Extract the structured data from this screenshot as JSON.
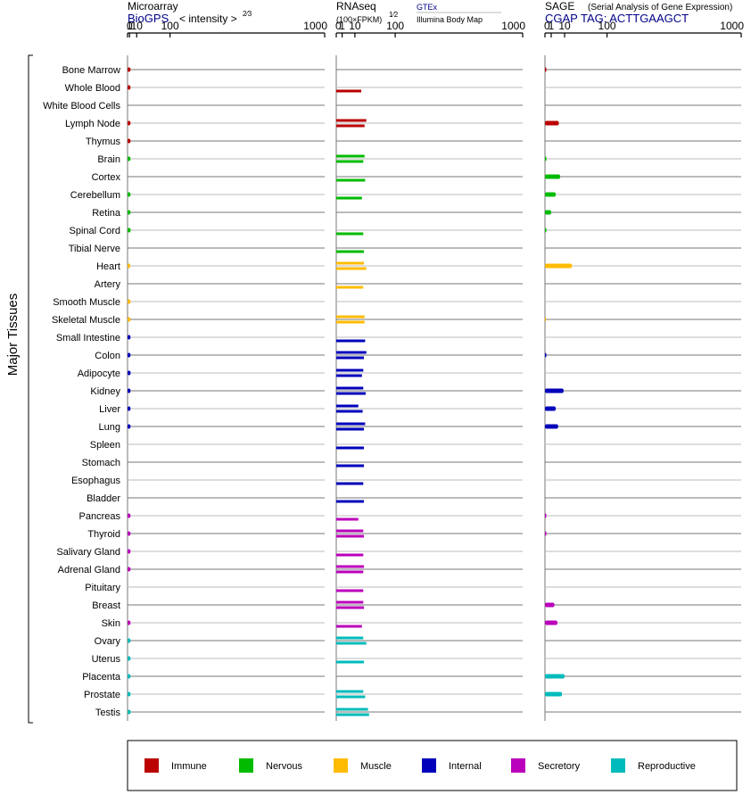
{
  "colors": {
    "Immune": "#bb0000",
    "Nervous": "#00bb00",
    "Muscle": "#ffbb00",
    "Internal": "#0000bb",
    "Secretory": "#bb00bb",
    "Reproductive": "#00bbbb",
    "link": "#000088",
    "grid": "#777777"
  },
  "y_axis_label": "Major Tissues",
  "panels": [
    {
      "title": "Microarray",
      "subtitle_link": "BioGPS",
      "subtitle_note": "< intensity >",
      "subtitle_exp": "2⁄3",
      "ticks": [
        "0",
        "1",
        "10",
        "100",
        "1000"
      ]
    },
    {
      "title": "RNAseq",
      "subtitle_note": "(100×FPKM)",
      "subtitle_exp": "1⁄2",
      "source_top": "GTEx",
      "source_bottom": "Illumina Body Map",
      "ticks": [
        "0",
        "1",
        "10",
        "100",
        "1000"
      ]
    },
    {
      "title": "SAGE",
      "title_note": "(Serial Analysis of Gene Expression)",
      "subtitle_link": "CGAP TAG: ACTTGAAGCT",
      "ticks": [
        "0",
        "1",
        "10",
        "100",
        "1000"
      ]
    }
  ],
  "legend": [
    "Immune",
    "Nervous",
    "Muscle",
    "Internal",
    "Secretory",
    "Reproductive"
  ],
  "chart_data": {
    "type": "bar",
    "scale": "power-transformed (Microarray ^2/3, RNAseq ^1/2, SAGE ^1/2)",
    "categories": [
      "Bone Marrow",
      "Whole Blood",
      "White Blood Cells",
      "Lymph Node",
      "Thymus",
      "Brain",
      "Cortex",
      "Cerebellum",
      "Retina",
      "Spinal Cord",
      "Tibial Nerve",
      "Heart",
      "Artery",
      "Smooth Muscle",
      "Skeletal Muscle",
      "Small Intestine",
      "Colon",
      "Adipocyte",
      "Kidney",
      "Liver",
      "Lung",
      "Spleen",
      "Stomach",
      "Esophagus",
      "Bladder",
      "Pancreas",
      "Thyroid",
      "Salivary Gland",
      "Adrenal Gland",
      "Pituitary",
      "Breast",
      "Skin",
      "Ovary",
      "Uterus",
      "Placenta",
      "Prostate",
      "Testis"
    ],
    "groups": [
      "Immune",
      "Immune",
      "Immune",
      "Immune",
      "Immune",
      "Nervous",
      "Nervous",
      "Nervous",
      "Nervous",
      "Nervous",
      "Nervous",
      "Muscle",
      "Muscle",
      "Muscle",
      "Muscle",
      "Internal",
      "Internal",
      "Internal",
      "Internal",
      "Internal",
      "Internal",
      "Internal",
      "Internal",
      "Internal",
      "Internal",
      "Secretory",
      "Secretory",
      "Secretory",
      "Secretory",
      "Secretory",
      "Secretory",
      "Secretory",
      "Reproductive",
      "Reproductive",
      "Reproductive",
      "Reproductive",
      "Reproductive"
    ],
    "series": [
      {
        "name": "Microarray",
        "values": [
          [
            1.8
          ],
          [
            1.8
          ],
          [],
          [
            1.8
          ],
          [
            1.8
          ],
          [
            1.8
          ],
          [],
          [
            1.8
          ],
          [
            1.8
          ],
          [
            1.9
          ],
          [],
          [
            1.5
          ],
          [],
          [
            1.8
          ],
          [
            1.8
          ],
          [
            1.8
          ],
          [
            1.8
          ],
          [
            1.9
          ],
          [
            1.8
          ],
          [
            1.8
          ],
          [
            1.8
          ],
          [],
          [],
          [],
          [],
          [
            1.8
          ],
          [
            1.8
          ],
          [
            1.8
          ],
          [
            1.8
          ],
          [],
          [],
          [
            1.8
          ],
          [
            1.8
          ],
          [
            1.8
          ],
          [
            1.8
          ],
          [
            1.8
          ],
          [
            1.9
          ]
        ]
      },
      {
        "name": "RNAseq",
        "values": [
          [],
          [
            18
          ],
          [],
          [
            26,
            23
          ],
          [],
          [
            23,
            21
          ],
          [
            24
          ],
          [
            19
          ],
          [],
          [
            21
          ],
          [
            22
          ],
          [
            22,
            26
          ],
          [
            21
          ],
          [],
          [
            23,
            23
          ],
          [
            24
          ],
          [
            26,
            22
          ],
          [
            21,
            19
          ],
          [
            21,
            25
          ],
          [
            14,
            20
          ],
          [
            24,
            22
          ],
          [
            22
          ],
          [
            22
          ],
          [
            21
          ],
          [
            22
          ],
          [
            14
          ],
          [
            21,
            22
          ],
          [
            21
          ],
          [
            22,
            21
          ],
          [
            21
          ],
          [
            21,
            22
          ],
          [
            19
          ],
          [
            21,
            26
          ],
          [
            22
          ],
          [],
          [
            21,
            24
          ],
          [
            29,
            31
          ]
        ]
      },
      {
        "name": "SAGE",
        "values": [
          [
            0.05
          ],
          [],
          [],
          [
            5
          ],
          [],
          [
            0.05
          ],
          [
            6
          ],
          [
            3
          ],
          [
            1
          ],
          [
            0.05
          ],
          [],
          [
            19
          ],
          [],
          [],
          [
            0.03
          ],
          [],
          [
            0.05
          ],
          [],
          [
            9
          ],
          [
            3
          ],
          [
            4.5
          ],
          [],
          [],
          [],
          [],
          [
            0.05
          ],
          [
            0.05
          ],
          [],
          [],
          [],
          [
            2.3
          ],
          [
            4
          ],
          [],
          [],
          [
            10
          ],
          [
            7.5
          ],
          []
        ]
      }
    ],
    "xlim": [
      0,
      1000
    ],
    "xticks": [
      0,
      1,
      10,
      100,
      1000
    ],
    "legend_placement": "bottom"
  }
}
